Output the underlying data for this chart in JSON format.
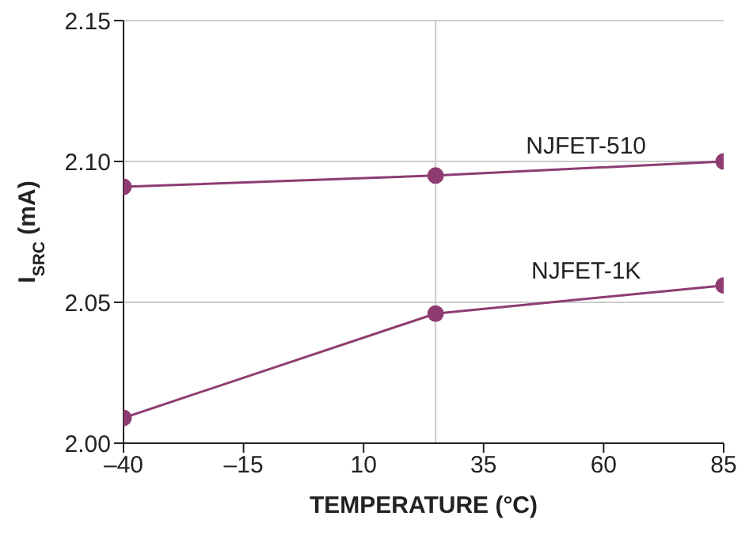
{
  "chart_data": {
    "type": "line",
    "xlabel": "TEMPERATURE (°C)",
    "ylabel": "I$_{SRC}$ (mA)",
    "x": [
      -40,
      25,
      85
    ],
    "series": [
      {
        "name": "NJFET-510",
        "color": "#8e3c72",
        "values": [
          2.091,
          2.095,
          2.1
        ]
      },
      {
        "name": "NJFET-1K",
        "color": "#8e3c72",
        "values": [
          2.009,
          2.046,
          2.056
        ]
      }
    ],
    "xlim": [
      -40,
      85
    ],
    "xticks": [
      {
        "value": -40,
        "label": "–40"
      },
      {
        "value": -15,
        "label": "–15"
      },
      10,
      35,
      60,
      85
    ],
    "ylim": [
      2.0,
      2.15
    ],
    "yticks": [
      {
        "value": 2.0,
        "label": "2.00"
      },
      {
        "value": 2.05,
        "label": "2.05"
      },
      {
        "value": 2.1,
        "label": "2.10"
      },
      {
        "value": 2.15,
        "label": "2.15"
      }
    ],
    "grid": "y",
    "marker": "circle",
    "line_style": "solid",
    "legend": false,
    "ref_lines": [
      {
        "axis": "x",
        "value": 25,
        "color": "#cccccc"
      }
    ]
  }
}
